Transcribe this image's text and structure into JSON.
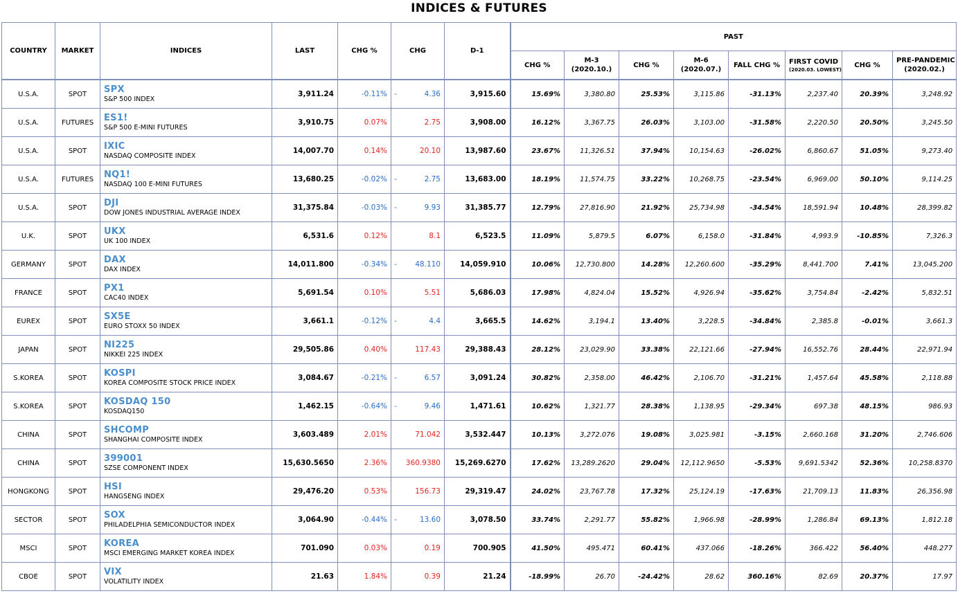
{
  "title": "INDICES & FUTURES",
  "headers": {
    "country": "COUNTRY",
    "market": "MARKET",
    "indices": "INDICES",
    "last": "LAST",
    "chg_pct": "CHG %",
    "chg": "CHG",
    "d1": "D-1",
    "past": "PAST",
    "p_chg1": "CHG %",
    "m3": "M-3",
    "m3_sub": "(2020.10.)",
    "p_chg2": "CHG %",
    "m6": "M-6",
    "m6_sub": "(2020.07.)",
    "fall_chg": "FALL CHG %",
    "first_covid": "FIRST COVID",
    "first_covid_sub": "(2020.03. LOWEST)",
    "p_chg3": "CHG %",
    "pre_pandemic": "PRE-PANDEMIC",
    "pre_pandemic_sub": "(2020.02.)"
  },
  "rows": [
    {
      "country": "U.S.A.",
      "market": "SPOT",
      "ticker": "SPX",
      "name": "S&P 500 INDEX",
      "last": "3,911.24",
      "chg_pct": "-0.11%",
      "chg": "4.36",
      "dir": "neg",
      "dash": "-",
      "d1": "3,915.60",
      "c1": "15.69%",
      "m3": "3,380.80",
      "c2": "25.53%",
      "m6": "3,115.86",
      "fall": "-31.13%",
      "covid": "2,237.40",
      "c3": "20.39%",
      "pre": "3,248.92"
    },
    {
      "country": "U.S.A.",
      "market": "FUTURES",
      "ticker": "ES1!",
      "name": "S&P 500 E-MINI FUTURES",
      "last": "3,910.75",
      "chg_pct": "0.07%",
      "chg": "2.75",
      "dir": "pos",
      "dash": "",
      "d1": "3,908.00",
      "c1": "16.12%",
      "m3": "3,367.75",
      "c2": "26.03%",
      "m6": "3,103.00",
      "fall": "-31.58%",
      "covid": "2,220.50",
      "c3": "20.50%",
      "pre": "3,245.50"
    },
    {
      "country": "U.S.A.",
      "market": "SPOT",
      "ticker": "IXIC",
      "name": "NASDAQ COMPOSITE INDEX",
      "last": "14,007.70",
      "chg_pct": "0.14%",
      "chg": "20.10",
      "dir": "pos",
      "dash": "",
      "d1": "13,987.60",
      "c1": "23.67%",
      "m3": "11,326.51",
      "c2": "37.94%",
      "m6": "10,154.63",
      "fall": "-26.02%",
      "covid": "6,860.67",
      "c3": "51.05%",
      "pre": "9,273.40"
    },
    {
      "country": "U.S.A.",
      "market": "FUTURES",
      "ticker": "NQ1!",
      "name": "NASDAQ 100 E-MINI FUTURES",
      "last": "13,680.25",
      "chg_pct": "-0.02%",
      "chg": "2.75",
      "dir": "neg",
      "dash": "-",
      "d1": "13,683.00",
      "c1": "18.19%",
      "m3": "11,574.75",
      "c2": "33.22%",
      "m6": "10,268.75",
      "fall": "-23.54%",
      "covid": "6,969.00",
      "c3": "50.10%",
      "pre": "9,114.25"
    },
    {
      "country": "U.S.A.",
      "market": "SPOT",
      "ticker": "DJI",
      "name": "DOW JONES INDUSTRIAL AVERAGE INDEX",
      "last": "31,375.84",
      "chg_pct": "-0.03%",
      "chg": "9.93",
      "dir": "neg",
      "dash": "-",
      "d1": "31,385.77",
      "c1": "12.79%",
      "m3": "27,816.90",
      "c2": "21.92%",
      "m6": "25,734.98",
      "fall": "-34.54%",
      "covid": "18,591.94",
      "c3": "10.48%",
      "pre": "28,399.82"
    },
    {
      "country": "U.K.",
      "market": "SPOT",
      "ticker": "UKX",
      "name": "UK 100 INDEX",
      "last": "6,531.6",
      "chg_pct": "0.12%",
      "chg": "8.1",
      "dir": "pos",
      "dash": "",
      "d1": "6,523.5",
      "c1": "11.09%",
      "m3": "5,879.5",
      "c2": "6.07%",
      "m6": "6,158.0",
      "fall": "-31.84%",
      "covid": "4,993.9",
      "c3": "-10.85%",
      "pre": "7,326.3"
    },
    {
      "country": "GERMANY",
      "market": "SPOT",
      "ticker": "DAX",
      "name": "DAX INDEX",
      "last": "14,011.800",
      "chg_pct": "-0.34%",
      "chg": "48.110",
      "dir": "neg",
      "dash": "-",
      "d1": "14,059.910",
      "c1": "10.06%",
      "m3": "12,730.800",
      "c2": "14.28%",
      "m6": "12,260.600",
      "fall": "-35.29%",
      "covid": "8,441.700",
      "c3": "7.41%",
      "pre": "13,045.200"
    },
    {
      "country": "FRANCE",
      "market": "SPOT",
      "ticker": "PX1",
      "name": "CAC40 INDEX",
      "last": "5,691.54",
      "chg_pct": "0.10%",
      "chg": "5.51",
      "dir": "pos",
      "dash": "",
      "d1": "5,686.03",
      "c1": "17.98%",
      "m3": "4,824.04",
      "c2": "15.52%",
      "m6": "4,926.94",
      "fall": "-35.62%",
      "covid": "3,754.84",
      "c3": "-2.42%",
      "pre": "5,832.51"
    },
    {
      "country": "EUREX",
      "market": "SPOT",
      "ticker": "SX5E",
      "name": "EURO STOXX 50 INDEX",
      "last": "3,661.1",
      "chg_pct": "-0.12%",
      "chg": "4.4",
      "dir": "neg",
      "dash": "-",
      "d1": "3,665.5",
      "c1": "14.62%",
      "m3": "3,194.1",
      "c2": "13.40%",
      "m6": "3,228.5",
      "fall": "-34.84%",
      "covid": "2,385.8",
      "c3": "-0.01%",
      "pre": "3,661.3"
    },
    {
      "country": "JAPAN",
      "market": "SPOT",
      "ticker": "NI225",
      "name": "NIKKEI 225 INDEX",
      "last": "29,505.86",
      "chg_pct": "0.40%",
      "chg": "117.43",
      "dir": "pos",
      "dash": "",
      "d1": "29,388.43",
      "c1": "28.12%",
      "m3": "23,029.90",
      "c2": "33.38%",
      "m6": "22,121.66",
      "fall": "-27.94%",
      "covid": "16,552.76",
      "c3": "28.44%",
      "pre": "22,971.94"
    },
    {
      "country": "S.KOREA",
      "market": "SPOT",
      "ticker": "KOSPI",
      "name": "KOREA COMPOSITE STOCK PRICE INDEX",
      "last": "3,084.67",
      "chg_pct": "-0.21%",
      "chg": "6.57",
      "dir": "neg",
      "dash": "-",
      "d1": "3,091.24",
      "c1": "30.82%",
      "m3": "2,358.00",
      "c2": "46.42%",
      "m6": "2,106.70",
      "fall": "-31.21%",
      "covid": "1,457.64",
      "c3": "45.58%",
      "pre": "2,118.88"
    },
    {
      "country": "S.KOREA",
      "market": "SPOT",
      "ticker": "KOSDAQ 150",
      "name": "KOSDAQ150",
      "last": "1,462.15",
      "chg_pct": "-0.64%",
      "chg": "9.46",
      "dir": "neg",
      "dash": "-",
      "d1": "1,471.61",
      "c1": "10.62%",
      "m3": "1,321.77",
      "c2": "28.38%",
      "m6": "1,138.95",
      "fall": "-29.34%",
      "covid": "697.38",
      "c3": "48.15%",
      "pre": "986.93"
    },
    {
      "country": "CHINA",
      "market": "SPOT",
      "ticker": "SHCOMP",
      "name": "SHANGHAI COMPOSITE INDEX",
      "last": "3,603.489",
      "chg_pct": "2.01%",
      "chg": "71.042",
      "dir": "pos",
      "dash": "",
      "d1": "3,532.447",
      "c1": "10.13%",
      "m3": "3,272.076",
      "c2": "19.08%",
      "m6": "3,025.981",
      "fall": "-3.15%",
      "covid": "2,660.168",
      "c3": "31.20%",
      "pre": "2,746.606"
    },
    {
      "country": "CHINA",
      "market": "SPOT",
      "ticker": "399001",
      "name": "SZSE COMPONENT INDEX",
      "last": "15,630.5650",
      "chg_pct": "2.36%",
      "chg": "360.9380",
      "dir": "pos",
      "dash": "",
      "d1": "15,269.6270",
      "c1": "17.62%",
      "m3": "13,289.2620",
      "c2": "29.04%",
      "m6": "12,112.9650",
      "fall": "-5.53%",
      "covid": "9,691.5342",
      "c3": "52.36%",
      "pre": "10,258.8370"
    },
    {
      "country": "HONGKONG",
      "market": "SPOT",
      "ticker": "HSI",
      "name": "HANGSENG INDEX",
      "last": "29,476.20",
      "chg_pct": "0.53%",
      "chg": "156.73",
      "dir": "pos",
      "dash": "",
      "d1": "29,319.47",
      "c1": "24.02%",
      "m3": "23,767.78",
      "c2": "17.32%",
      "m6": "25,124.19",
      "fall": "-17.63%",
      "covid": "21,709.13",
      "c3": "11.83%",
      "pre": "26,356.98"
    },
    {
      "country": "SECTOR",
      "market": "SPOT",
      "ticker": "SOX",
      "name": "PHILADELPHIA SEMICONDUCTOR INDEX",
      "last": "3,064.90",
      "chg_pct": "-0.44%",
      "chg": "13.60",
      "dir": "neg",
      "dash": "-",
      "d1": "3,078.50",
      "c1": "33.74%",
      "m3": "2,291.77",
      "c2": "55.82%",
      "m6": "1,966.98",
      "fall": "-28.99%",
      "covid": "1,286.84",
      "c3": "69.13%",
      "pre": "1,812.18"
    },
    {
      "country": "MSCI",
      "market": "SPOT",
      "ticker": "KOREA",
      "name": "MSCI EMERGING MARKET KOREA INDEX",
      "last": "701.090",
      "chg_pct": "0.03%",
      "chg": "0.19",
      "dir": "pos",
      "dash": "",
      "d1": "700.905",
      "c1": "41.50%",
      "m3": "495.471",
      "c2": "60.41%",
      "m6": "437.066",
      "fall": "-18.26%",
      "covid": "366.422",
      "c3": "56.40%",
      "pre": "448.277"
    },
    {
      "country": "CBOE",
      "market": "SPOT",
      "ticker": "VIX",
      "name": "VOLATILITY INDEX",
      "last": "21.63",
      "chg_pct": "1.84%",
      "chg": "0.39",
      "dir": "pos",
      "dash": "",
      "d1": "21.24",
      "c1": "-18.99%",
      "m3": "26.70",
      "c2": "-24.42%",
      "m6": "28.62",
      "fall": "360.16%",
      "covid": "82.69",
      "c3": "20.37%",
      "pre": "17.97"
    }
  ],
  "colors": {
    "up": "#e32222",
    "down": "#2a6cc8",
    "ticker": "#4a8ecb",
    "border": "#7f8fb5"
  }
}
